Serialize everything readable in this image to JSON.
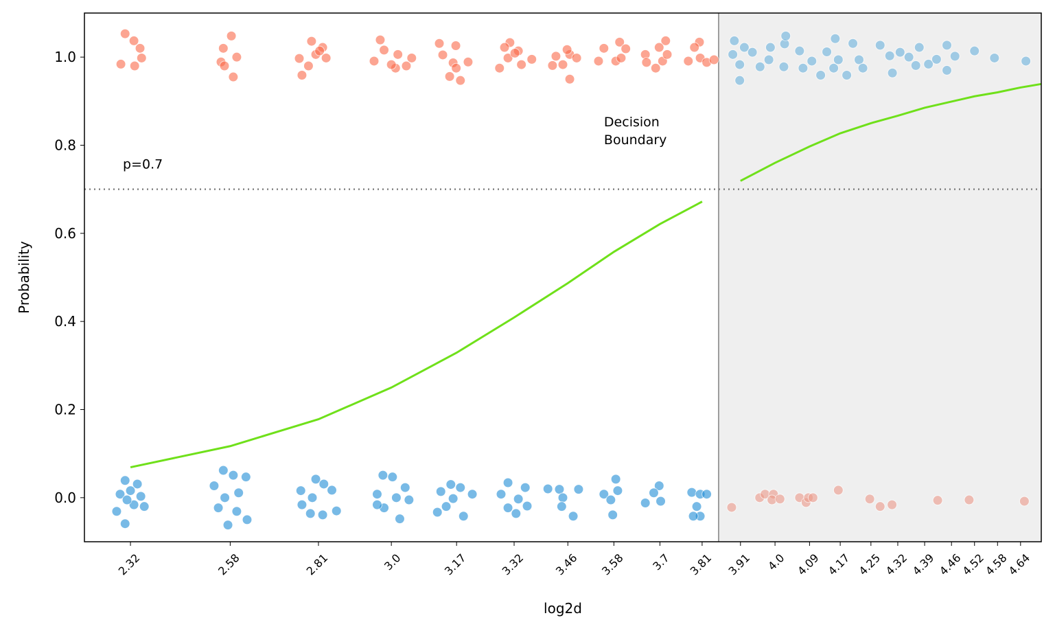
{
  "chart_data": {
    "type": "scatter",
    "xlabel": "log2d",
    "ylabel": "Probability",
    "xlim": [
      2.2,
      4.694
    ],
    "ylim": [
      -0.1,
      1.1
    ],
    "xticks": [
      2.32,
      2.58,
      2.81,
      {
        "value": 3,
        "label": "3.0"
      },
      3.17,
      3.32,
      3.46,
      3.58,
      3.7,
      3.81,
      3.91,
      {
        "value": 4,
        "label": "4.0"
      },
      4.09,
      4.17,
      4.25,
      4.32,
      4.39,
      4.46,
      4.52,
      4.58,
      4.64
    ],
    "yticks": [
      {
        "value": 0,
        "label": "0.0"
      },
      0.2,
      0.4,
      0.6,
      0.8,
      {
        "value": 1,
        "label": "1.0"
      }
    ],
    "threshold": {
      "value": 0.7,
      "label": "p=0.7",
      "color": "#808080"
    },
    "boundary": {
      "value": 3.853,
      "label": [
        "Decision",
        "Boundary"
      ],
      "color": "#808080",
      "shade": "#efefef"
    },
    "groups": [
      {
        "color": "#fb6a4a",
        "x": [
          2.306,
          2.329,
          2.345,
          2.349,
          2.295,
          2.331,
          2.583,
          2.562,
          2.556,
          2.597,
          2.588,
          2.565,
          2.792,
          2.821,
          2.767,
          2.784,
          2.803,
          2.83,
          2.76,
          2.813,
          2.971,
          3.017,
          2.981,
          3.039,
          2.955,
          3.011,
          3.053,
          3.0,
          3.125,
          3.168,
          3.152,
          3.18,
          3.161,
          3.2,
          3.134,
          3.169,
          3.309,
          3.331,
          3.282,
          3.339,
          3.304,
          3.366,
          3.322,
          3.295,
          3.429,
          3.465,
          3.458,
          3.465,
          3.483,
          3.447,
          3.42,
          3.554,
          3.595,
          3.611,
          3.585,
          3.54,
          3.599,
          3.662,
          3.715,
          3.698,
          3.689,
          3.707,
          3.719,
          3.665,
          3.803,
          3.79,
          3.805,
          3.774,
          3.822,
          3.841
        ],
        "y": [
          1.053,
          1.037,
          1.02,
          0.998,
          0.984,
          0.98,
          1.048,
          1.02,
          0.989,
          1.0,
          0.955,
          0.98,
          1.036,
          1.022,
          0.959,
          0.98,
          1.006,
          0.998,
          0.997,
          1.014,
          1.039,
          1.006,
          1.016,
          0.98,
          0.991,
          0.975,
          0.998,
          0.983,
          1.031,
          1.026,
          0.956,
          0.947,
          0.987,
          0.989,
          1.005,
          0.975,
          1.033,
          1.014,
          0.975,
          0.983,
          0.998,
          0.995,
          1.009,
          1.022,
          1.002,
          1.006,
          1.017,
          0.95,
          0.998,
          0.983,
          0.981,
          1.02,
          1.034,
          1.019,
          0.991,
          0.991,
          0.998,
          1.006,
          1.037,
          1.022,
          0.975,
          0.991,
          1.006,
          0.988,
          1.034,
          1.022,
          0.998,
          0.991,
          0.988,
          0.994
        ]
      },
      {
        "color": "#1f8dd6",
        "x": [
          2.306,
          2.338,
          2.32,
          2.293,
          2.347,
          2.284,
          2.306,
          2.329,
          2.356,
          2.311,
          2.562,
          2.588,
          2.538,
          2.602,
          2.566,
          2.549,
          2.574,
          2.624,
          2.597,
          2.621,
          2.803,
          2.824,
          2.764,
          2.794,
          2.767,
          2.821,
          2.857,
          2.845,
          2.789,
          2.978,
          3.003,
          3.036,
          2.963,
          3.013,
          2.981,
          3.022,
          3.046,
          2.963,
          3.155,
          3.18,
          3.129,
          3.161,
          3.211,
          3.12,
          3.188,
          3.143,
          3.304,
          3.349,
          3.286,
          3.331,
          3.304,
          3.325,
          3.354,
          3.408,
          3.438,
          3.447,
          3.444,
          3.474,
          3.488,
          3.585,
          3.554,
          3.59,
          3.572,
          3.577,
          3.698,
          3.684,
          3.662,
          3.702,
          3.783,
          3.805,
          3.822,
          3.796,
          3.805,
          3.787
        ],
        "y": [
          0.039,
          0.031,
          0.016,
          0.008,
          0.003,
          -0.031,
          -0.059,
          -0.016,
          -0.02,
          -0.005,
          0.062,
          0.051,
          0.027,
          0.011,
          0.0,
          -0.023,
          -0.062,
          -0.05,
          -0.031,
          0.047,
          0.042,
          0.031,
          0.016,
          0.0,
          -0.016,
          -0.039,
          -0.03,
          0.017,
          -0.036,
          0.051,
          0.047,
          0.023,
          0.008,
          0.0,
          -0.023,
          -0.048,
          -0.005,
          -0.016,
          0.03,
          0.023,
          0.014,
          -0.002,
          0.008,
          -0.033,
          -0.042,
          -0.02,
          0.034,
          0.023,
          0.008,
          -0.003,
          -0.023,
          -0.036,
          -0.019,
          0.02,
          0.019,
          0.0,
          -0.02,
          -0.042,
          0.019,
          0.042,
          0.008,
          0.016,
          -0.005,
          -0.039,
          0.027,
          0.011,
          -0.012,
          -0.008,
          0.012,
          0.008,
          0.008,
          -0.02,
          -0.042,
          -0.042
        ]
      },
      {
        "color": "#6bb3de",
        "x": [
          3.894,
          3.89,
          3.908,
          3.908,
          3.92,
          3.941,
          3.961,
          3.988,
          3.984,
          4.025,
          4.028,
          4.023,
          4.064,
          4.073,
          4.096,
          4.119,
          4.135,
          4.157,
          4.153,
          4.165,
          4.187,
          4.203,
          4.219,
          4.229,
          4.274,
          4.299,
          4.306,
          4.326,
          4.349,
          4.376,
          4.367,
          4.4,
          4.421,
          4.448,
          4.448,
          4.469,
          4.52,
          4.572,
          4.654
        ],
        "y": [
          1.037,
          1.006,
          0.983,
          0.947,
          1.022,
          1.011,
          0.978,
          1.022,
          0.994,
          1.03,
          1.048,
          0.978,
          1.014,
          0.975,
          0.991,
          0.959,
          1.012,
          1.042,
          0.975,
          0.994,
          0.959,
          1.031,
          0.994,
          0.975,
          1.027,
          1.003,
          0.964,
          1.011,
          1.0,
          1.022,
          0.981,
          0.984,
          0.995,
          1.027,
          0.97,
          1.002,
          1.014,
          0.998,
          0.991
        ]
      },
      {
        "color": "#ec9a8a",
        "x": [
          3.887,
          3.96,
          3.974,
          3.996,
          3.992,
          4.013,
          4.064,
          4.081,
          4.087,
          4.099,
          4.165,
          4.247,
          4.274,
          4.305,
          4.424,
          4.506,
          4.65
        ],
        "y": [
          -0.022,
          0.0,
          0.008,
          0.008,
          -0.005,
          -0.003,
          0.0,
          -0.011,
          0.0,
          0.0,
          0.017,
          -0.003,
          -0.02,
          -0.016,
          -0.006,
          -0.005,
          -0.008
        ]
      }
    ],
    "lines": [
      {
        "color": "#6fe01a",
        "x": [
          2.32,
          2.58,
          2.81,
          3.0,
          3.17,
          3.32,
          3.46,
          3.58,
          3.7,
          3.81
        ],
        "values": [
          0.069,
          0.117,
          0.178,
          0.25,
          0.329,
          0.409,
          0.487,
          0.558,
          0.621,
          0.672
        ]
      },
      {
        "color": "#6fe01a",
        "x": [
          3.91,
          4.0,
          4.09,
          4.17,
          4.25,
          4.32,
          4.39,
          4.46,
          4.52,
          4.58,
          4.64,
          4.694
        ],
        "values": [
          0.719,
          0.76,
          0.797,
          0.827,
          0.85,
          0.867,
          0.885,
          0.899,
          0.911,
          0.92,
          0.931,
          0.939
        ]
      }
    ]
  }
}
